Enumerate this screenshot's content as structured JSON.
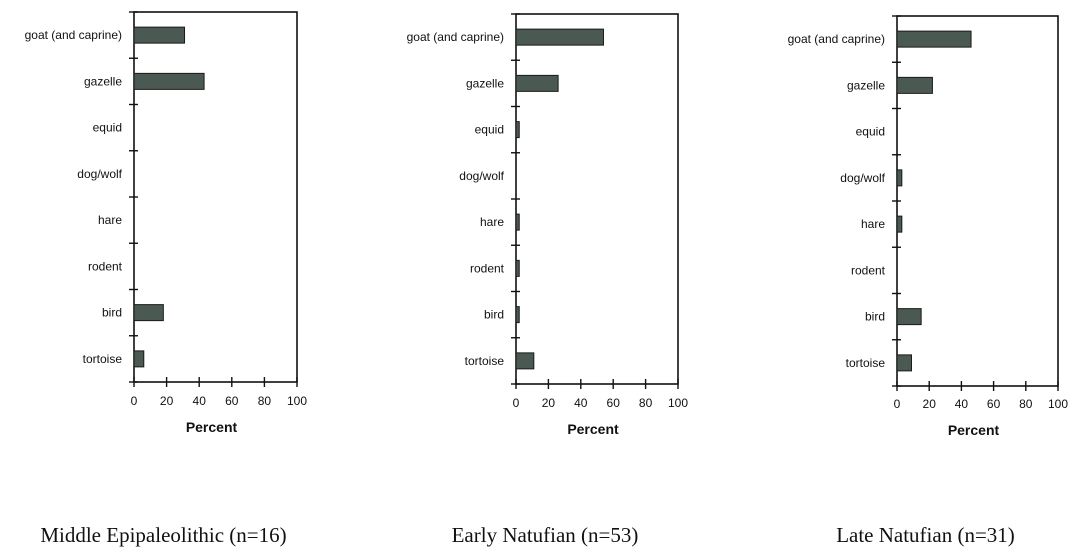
{
  "chart_data": [
    {
      "type": "bar",
      "orientation": "horizontal",
      "title": "Middle Epipaleolithic (n=16)",
      "xlabel": "Percent",
      "ylabel": "",
      "xlim": [
        0,
        100
      ],
      "xticks": [
        "0",
        "20",
        "40",
        "60",
        "80",
        "100"
      ],
      "categories": [
        "goat (and  caprine)",
        "gazelle",
        "equid",
        "dog/wolf",
        "hare",
        "rodent",
        "bird",
        "tortoise"
      ],
      "values": [
        31,
        43,
        0,
        0,
        0,
        0,
        18,
        6
      ]
    },
    {
      "type": "bar",
      "orientation": "horizontal",
      "title": "Early Natufian (n=53)",
      "xlabel": "Percent",
      "ylabel": "",
      "xlim": [
        0,
        100
      ],
      "xticks": [
        "0",
        "20",
        "40",
        "60",
        "80",
        "100"
      ],
      "categories": [
        "goat (and caprine)",
        "gazelle",
        "equid",
        "dog/wolf",
        "hare",
        "rodent",
        "bird",
        "tortoise"
      ],
      "values": [
        54,
        26,
        2,
        0,
        2,
        2,
        2,
        11
      ]
    },
    {
      "type": "bar",
      "orientation": "horizontal",
      "title": "Late Natufian (n=31)",
      "xlabel": "Percent",
      "ylabel": "",
      "xlim": [
        0,
        100
      ],
      "xticks": [
        "0",
        "20",
        "40",
        "60",
        "80",
        "100"
      ],
      "categories": [
        "goat (and caprine)",
        "gazelle",
        "equid",
        "dog/wolf",
        "hare",
        "rodent",
        "bird",
        "tortoise"
      ],
      "values": [
        46,
        22,
        0,
        3,
        3,
        0,
        15,
        9
      ]
    }
  ],
  "colors": {
    "bar_fill": "#4a5a52",
    "bar_stroke": "#1a1a1a",
    "axis": "#111111"
  },
  "grid": false
}
